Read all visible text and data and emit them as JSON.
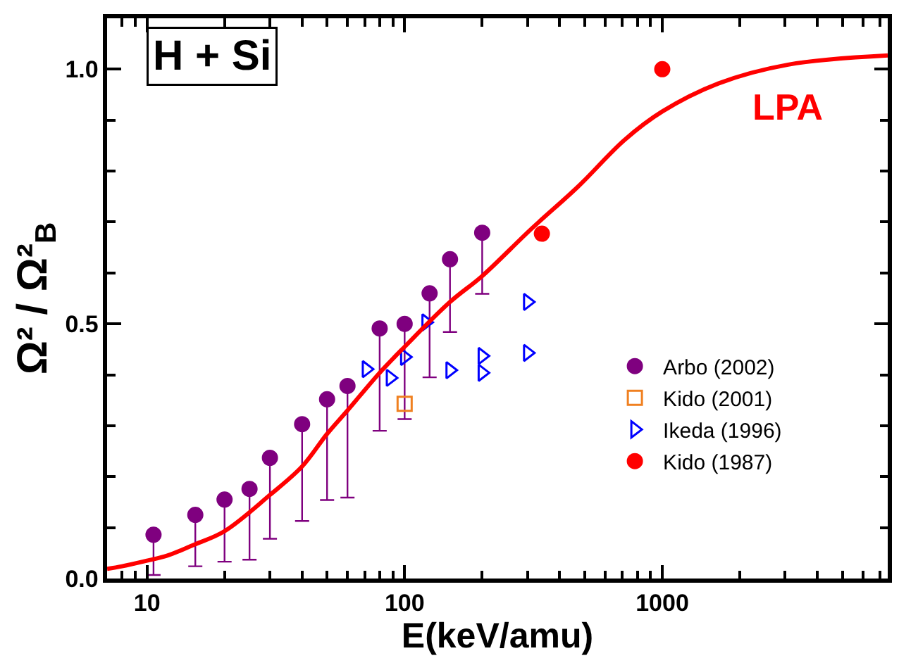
{
  "chart_data": {
    "type": "scatter",
    "title": "H + Si",
    "xlabel": "E(keV/amu)",
    "ylabel": "Ω² / Ω²$_{B}$",
    "log": "x",
    "legend": "bottom right",
    "xlim": [
      7,
      7500
    ],
    "ylim": [
      0,
      1.1
    ],
    "xticks": [
      {
        "value": 7,
        "label": null
      },
      {
        "value": 8,
        "label": null
      },
      {
        "value": 9,
        "label": null
      },
      10,
      {
        "value": 20,
        "label": null
      },
      {
        "value": 30,
        "label": null
      },
      {
        "value": 40,
        "label": null
      },
      {
        "value": 50,
        "label": null
      },
      {
        "value": 60,
        "label": null
      },
      {
        "value": 70,
        "label": null
      },
      {
        "value": 80,
        "label": null
      },
      {
        "value": 90,
        "label": null
      },
      100,
      {
        "value": 200,
        "label": null
      },
      {
        "value": 300,
        "label": null
      },
      {
        "value": 400,
        "label": null
      },
      {
        "value": 500,
        "label": null
      },
      {
        "value": 600,
        "label": null
      },
      {
        "value": 700,
        "label": null
      },
      {
        "value": 800,
        "label": null
      },
      {
        "value": 900,
        "label": null
      },
      1000,
      {
        "value": 2000,
        "label": null
      },
      {
        "value": 3000,
        "label": null
      },
      {
        "value": 4000,
        "label": null
      },
      {
        "value": 5000,
        "label": null
      },
      {
        "value": 6000,
        "label": null
      },
      {
        "value": 7000,
        "label": null
      }
    ],
    "yticks": [
      {
        "value": 0,
        "label": "0.0"
      },
      {
        "value": 0.1,
        "label": null
      },
      {
        "value": 0.2,
        "label": null
      },
      {
        "value": 0.3,
        "label": null
      },
      {
        "value": 0.4,
        "label": null
      },
      {
        "value": 0.5,
        "label": "0.5"
      },
      {
        "value": 0.6,
        "label": null
      },
      {
        "value": 0.7,
        "label": null
      },
      {
        "value": 0.8,
        "label": null
      },
      {
        "value": 0.9,
        "label": null
      },
      {
        "value": 1.0,
        "label": "1.0"
      }
    ],
    "series": [
      {
        "name": "Arbo (2002)",
        "color": "#7f007f",
        "marker": "circle",
        "x": [
          10.6,
          15.4,
          20,
          25,
          30,
          40,
          50,
          60,
          80,
          100,
          125,
          150,
          200
        ],
        "values": [
          0.086,
          0.125,
          0.155,
          0.176,
          0.237,
          0.303,
          0.352,
          0.378,
          0.491,
          0.5,
          0.56,
          0.627,
          0.679
        ],
        "errors": [
          [
            0.007,
            0.086
          ],
          [
            0.024,
            0.125
          ],
          [
            0.033,
            0.155
          ],
          [
            0.037,
            0.176
          ],
          [
            0.078,
            0.237
          ],
          [
            0.113,
            0.303
          ],
          [
            0.154,
            0.352
          ],
          [
            0.159,
            0.378
          ],
          [
            0.29,
            0.491
          ],
          [
            0.313,
            0.5
          ],
          [
            0.395,
            0.56
          ],
          [
            0.484,
            0.627
          ],
          [
            0.559,
            0.679
          ]
        ]
      },
      {
        "name": "Kido (2001)",
        "color": "#f08020",
        "marker": "square",
        "x": [
          100
        ],
        "values": [
          0.343
        ]
      },
      {
        "name": "Ikeda (1996)",
        "color": "#0000ff",
        "marker": "triangle",
        "x": [
          71,
          88,
          100,
          121,
          150,
          200,
          200,
          300,
          300
        ],
        "values": [
          0.411,
          0.394,
          0.435,
          0.503,
          0.409,
          0.437,
          0.404,
          0.443,
          0.543
        ]
      },
      {
        "name": "Kido (1987)",
        "color": "#ff0000",
        "marker": "circle",
        "x": [
          341,
          1000
        ],
        "values": [
          0.677,
          1.0
        ]
      },
      {
        "name": "LPA",
        "type": "line",
        "color": "#ff0000",
        "marker": "none",
        "line_style": "solid",
        "x": [
          7,
          8,
          10,
          12,
          15,
          20,
          30,
          40,
          50,
          60,
          80,
          100,
          150,
          200,
          311,
          470,
          713,
          1000,
          1650,
          3080,
          7500
        ],
        "values": [
          0.019,
          0.024,
          0.035,
          0.045,
          0.065,
          0.093,
          0.164,
          0.22,
          0.284,
          0.33,
          0.404,
          0.455,
          0.543,
          0.594,
          0.687,
          0.769,
          0.861,
          0.917,
          0.972,
          1.009,
          1.027
        ]
      }
    ]
  }
}
